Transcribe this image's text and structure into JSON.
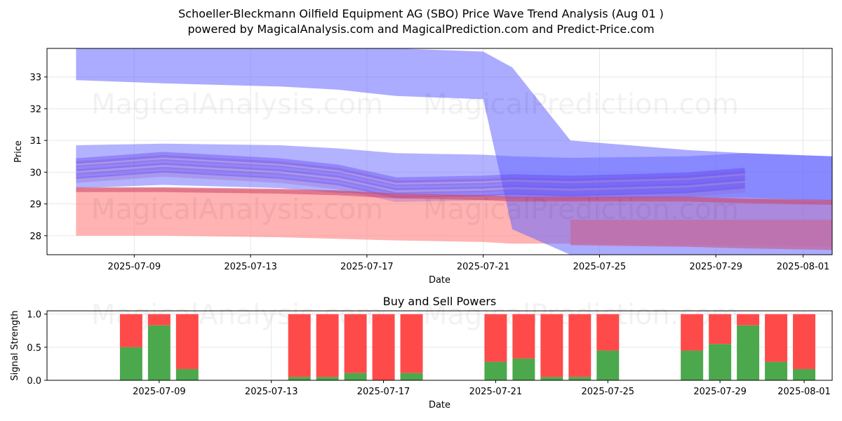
{
  "title_line1": "Schoeller-Bleckmann Oilfield Equipment AG (SBO) Price Wave Trend Analysis (Aug 01 )",
  "title_line2": "powered by MagicalAnalysis.com and MagicalPrediction.com and Predict-Price.com",
  "watermarks": [
    "MagicalAnalysis.com",
    "MagicalPrediction.com"
  ],
  "colors": {
    "buy": "#4ca84c",
    "sell": "#ff4a4a",
    "blue_band": "#6666ff",
    "red_band": "#ff8080",
    "purple_band": "#c070a8"
  },
  "chart_data": [
    {
      "type": "area",
      "title": "",
      "xlabel": "Date",
      "ylabel": "Price",
      "xlim": [
        "2025-07-06",
        "2025-08-02"
      ],
      "ylim": [
        27.4,
        33.9
      ],
      "yticks": [
        28,
        29,
        30,
        31,
        32,
        33
      ],
      "xticks": [
        "2025-07-09",
        "2025-07-13",
        "2025-07-17",
        "2025-07-21",
        "2025-07-25",
        "2025-07-29",
        "2025-08-01"
      ],
      "dates": [
        "2025-07-07",
        "2025-07-10",
        "2025-07-14",
        "2025-07-16",
        "2025-07-18",
        "2025-07-21",
        "2025-07-22",
        "2025-07-24",
        "2025-07-28",
        "2025-07-30",
        "2025-08-02"
      ],
      "series": [
        {
          "name": "upper blue band top",
          "values": [
            33.9,
            33.9,
            33.9,
            33.9,
            33.9,
            33.8,
            33.3,
            31.0,
            30.7,
            30.6,
            30.5
          ]
        },
        {
          "name": "upper blue band bottom",
          "values": [
            32.9,
            32.8,
            32.7,
            32.6,
            32.4,
            32.3,
            28.2,
            27.4,
            27.4,
            27.4,
            27.4
          ]
        },
        {
          "name": "wide blue band top",
          "values": [
            30.85,
            30.9,
            30.85,
            30.75,
            30.6,
            30.55,
            30.5,
            30.45,
            30.5,
            30.6,
            30.5
          ]
        },
        {
          "name": "wide blue band bottom",
          "values": [
            29.5,
            29.6,
            29.5,
            29.35,
            29.3,
            29.25,
            29.2,
            29.2,
            29.2,
            29.2,
            29.1
          ]
        },
        {
          "name": "central wave",
          "values": [
            30.0,
            30.2,
            30.0,
            29.8,
            29.4,
            29.45,
            29.5,
            29.45,
            29.55,
            29.7,
            29.4
          ]
        },
        {
          "name": "red band top",
          "values": [
            29.5,
            29.5,
            29.45,
            29.4,
            29.3,
            29.25,
            29.2,
            29.2,
            29.2,
            29.15,
            29.1
          ]
        },
        {
          "name": "red band bottom",
          "values": [
            28.0,
            28.0,
            27.95,
            27.9,
            27.85,
            27.8,
            27.75,
            27.75,
            27.7,
            27.7,
            27.65
          ]
        },
        {
          "name": "purple band top",
          "values": [
            null,
            null,
            null,
            null,
            null,
            null,
            null,
            28.5,
            28.5,
            28.5,
            28.5
          ]
        },
        {
          "name": "purple band bottom",
          "values": [
            null,
            null,
            null,
            null,
            null,
            null,
            null,
            27.7,
            27.65,
            27.6,
            27.55
          ]
        }
      ]
    },
    {
      "type": "bar",
      "title": "Buy and Sell Powers",
      "xlabel": "Date",
      "ylabel": "Signal Strength",
      "ylim": [
        0,
        1.05
      ],
      "yticks": [
        "0.0",
        "0.5",
        "1.0"
      ],
      "xticks": [
        "2025-07-09",
        "2025-07-13",
        "2025-07-17",
        "2025-07-21",
        "2025-07-25",
        "2025-07-29",
        "2025-08-01"
      ],
      "categories": [
        "2025-07-08",
        "2025-07-09",
        "2025-07-10",
        "2025-07-14",
        "2025-07-15",
        "2025-07-16",
        "2025-07-17",
        "2025-07-18",
        "2025-07-21",
        "2025-07-22",
        "2025-07-23",
        "2025-07-24",
        "2025-07-25",
        "2025-07-28",
        "2025-07-29",
        "2025-07-30",
        "2025-07-31",
        "2025-08-01"
      ],
      "series": [
        {
          "name": "Buy",
          "values": [
            0.5,
            0.83,
            0.17,
            0.05,
            0.05,
            0.11,
            0.0,
            0.11,
            0.28,
            0.33,
            0.05,
            0.05,
            0.45,
            0.45,
            0.55,
            0.83,
            0.28,
            0.17
          ]
        },
        {
          "name": "Sell",
          "values": [
            0.5,
            0.17,
            0.83,
            0.95,
            0.95,
            0.89,
            1.0,
            0.89,
            0.72,
            0.67,
            0.95,
            0.95,
            0.55,
            0.55,
            0.45,
            0.17,
            0.72,
            0.83
          ]
        }
      ]
    }
  ]
}
